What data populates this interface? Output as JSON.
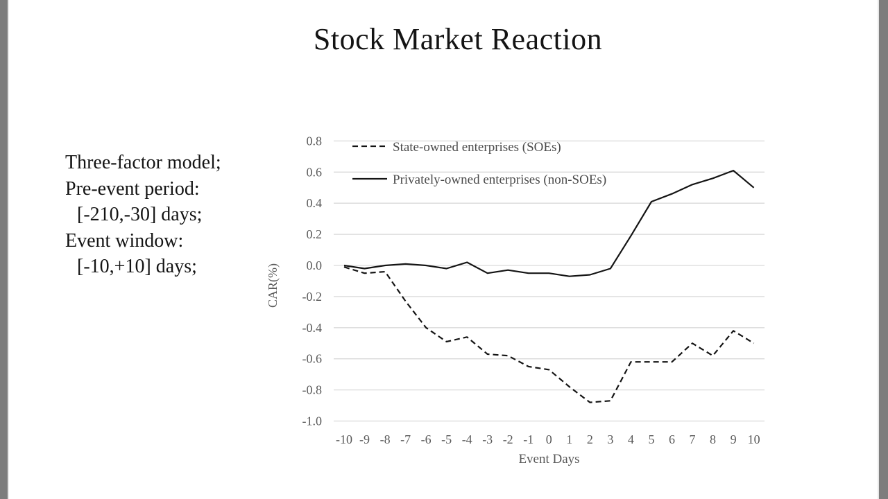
{
  "slide": {
    "title": "Stock Market Reaction"
  },
  "notes": {
    "lines": [
      "Three-factor model;",
      "Pre-event period:",
      "[-210,-30] days;",
      "Event window:",
      "[-10,+10] days;"
    ]
  },
  "chart_data": {
    "type": "line",
    "title": "",
    "xlabel": "Event Days",
    "ylabel": "CAR(%)",
    "x": [
      -10,
      -9,
      -8,
      -7,
      -6,
      -5,
      -4,
      -3,
      -2,
      -1,
      0,
      1,
      2,
      3,
      4,
      5,
      6,
      7,
      8,
      9,
      10
    ],
    "ylim": [
      -1.0,
      0.8
    ],
    "yticks": [
      0.8,
      0.6,
      0.4,
      0.2,
      0.0,
      -0.2,
      -0.4,
      -0.6,
      -0.8,
      -1.0
    ],
    "grid": true,
    "legend_position": "top-left-inside",
    "series": [
      {
        "name": "State-owned enterprises (SOEs)",
        "style": "dashed",
        "color": "#141414",
        "values": [
          -0.01,
          -0.05,
          -0.04,
          -0.23,
          -0.4,
          -0.49,
          -0.46,
          -0.57,
          -0.58,
          -0.65,
          -0.67,
          -0.78,
          -0.88,
          -0.87,
          -0.62,
          -0.62,
          -0.62,
          -0.5,
          -0.58,
          -0.42,
          -0.5
        ]
      },
      {
        "name": "Privately-owned enterprises (non-SOEs)",
        "style": "solid",
        "color": "#141414",
        "values": [
          0.0,
          -0.02,
          0.0,
          0.01,
          0.0,
          -0.02,
          0.02,
          -0.05,
          -0.03,
          -0.05,
          -0.05,
          -0.07,
          -0.06,
          -0.02,
          0.19,
          0.41,
          0.46,
          0.52,
          0.56,
          0.61,
          0.5
        ]
      }
    ]
  },
  "colors": {
    "gridline": "#d9d9d9",
    "axis_text": "#595959",
    "legend_text": "#4a4a4a",
    "background": "#ffffff",
    "border_bar": "#7d7d7d"
  }
}
